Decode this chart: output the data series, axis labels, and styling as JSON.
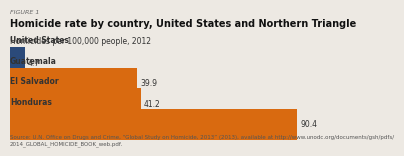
{
  "figure_label": "FIGURE 1",
  "title": "Homicide rate by country, United States and Northern Triangle",
  "subtitle": "Homicides per 100,000 people, 2012",
  "categories": [
    "United States",
    "Guatemala",
    "El Salvador",
    "Honduras"
  ],
  "values": [
    4.7,
    39.9,
    41.2,
    90.4
  ],
  "bar_colors": [
    "#2b4a7a",
    "#d96a10",
    "#d96a10",
    "#d96a10"
  ],
  "source": "Source: U.N. Office on Drugs and Crime, “Global Study on Homicide, 2013” (2013), available at http://www.unodc.org/documents/gsh/pdfs/\n2014_GLOBAL_HOMICIDE_BOOK_web.pdf.",
  "bg_color": "#ede9e3",
  "xlim": [
    0,
    100
  ],
  "figure_label_fontsize": 4.5,
  "title_fontsize": 7.0,
  "subtitle_fontsize": 5.5,
  "label_fontsize": 5.5,
  "value_fontsize": 5.5,
  "source_fontsize": 4.0
}
